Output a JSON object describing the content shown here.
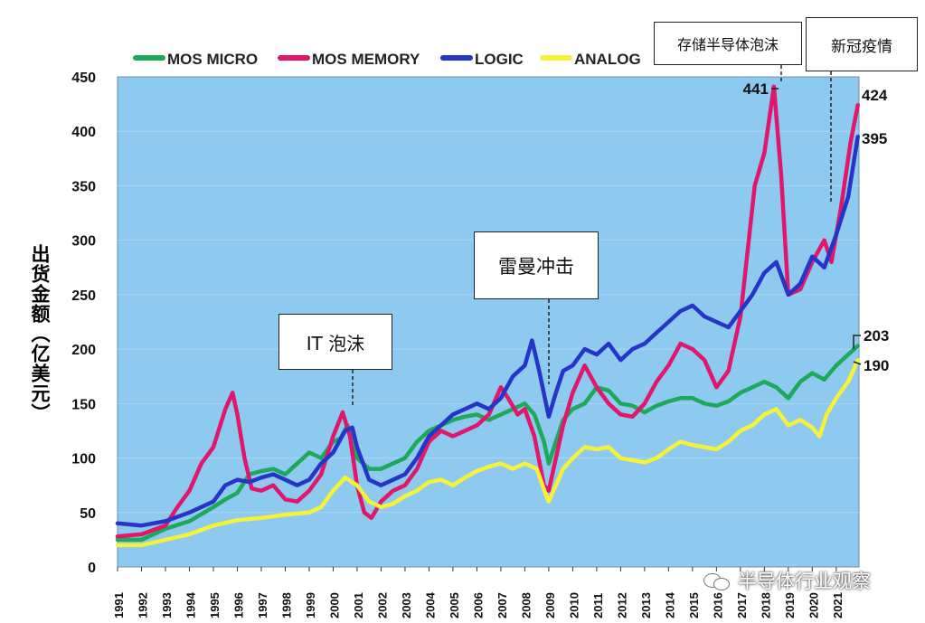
{
  "chart_data": {
    "type": "line",
    "title": "",
    "xlabel": "",
    "ylabel": "出货金额（亿美元）",
    "ylim": [
      0,
      450
    ],
    "yticks": [
      0,
      50,
      100,
      150,
      200,
      250,
      300,
      350,
      400,
      450
    ],
    "x_categories": [
      "1991",
      "1992",
      "1993",
      "1994",
      "1995",
      "1996",
      "1997",
      "1998",
      "1999",
      "2000",
      "2001",
      "2002",
      "2003",
      "2004",
      "2005",
      "2006",
      "2007",
      "2008",
      "2009",
      "2010",
      "2011",
      "2012",
      "2013",
      "2014",
      "2015",
      "2016",
      "2017",
      "2018",
      "2019",
      "2020",
      "2021"
    ],
    "grid": true,
    "legend_position": "top",
    "series": [
      {
        "name": "MOS MICRO",
        "color": "#1ea85a",
        "points": [
          [
            1991.0,
            25
          ],
          [
            1992.0,
            25
          ],
          [
            1993.0,
            35
          ],
          [
            1994.0,
            42
          ],
          [
            1995.0,
            55
          ],
          [
            1995.5,
            62
          ],
          [
            1996.0,
            68
          ],
          [
            1996.5,
            85
          ],
          [
            1997.0,
            88
          ],
          [
            1997.5,
            90
          ],
          [
            1998.0,
            85
          ],
          [
            1998.5,
            95
          ],
          [
            1999.0,
            105
          ],
          [
            1999.5,
            100
          ],
          [
            2000.0,
            115
          ],
          [
            2000.3,
            118
          ],
          [
            2000.6,
            130
          ],
          [
            2001.0,
            100
          ],
          [
            2001.5,
            90
          ],
          [
            2002.0,
            90
          ],
          [
            2002.5,
            95
          ],
          [
            2003.0,
            100
          ],
          [
            2003.5,
            115
          ],
          [
            2004.0,
            125
          ],
          [
            2004.5,
            130
          ],
          [
            2005.0,
            135
          ],
          [
            2005.5,
            138
          ],
          [
            2006.0,
            140
          ],
          [
            2006.5,
            135
          ],
          [
            2007.0,
            140
          ],
          [
            2007.5,
            145
          ],
          [
            2008.0,
            150
          ],
          [
            2008.4,
            140
          ],
          [
            2008.8,
            115
          ],
          [
            2009.0,
            95
          ],
          [
            2009.3,
            115
          ],
          [
            2009.6,
            135
          ],
          [
            2010.0,
            145
          ],
          [
            2010.5,
            150
          ],
          [
            2011.0,
            165
          ],
          [
            2011.5,
            162
          ],
          [
            2012.0,
            150
          ],
          [
            2012.5,
            148
          ],
          [
            2013.0,
            142
          ],
          [
            2013.5,
            148
          ],
          [
            2014.0,
            152
          ],
          [
            2014.5,
            155
          ],
          [
            2015.0,
            155
          ],
          [
            2015.5,
            150
          ],
          [
            2016.0,
            148
          ],
          [
            2016.5,
            152
          ],
          [
            2017.0,
            160
          ],
          [
            2017.5,
            165
          ],
          [
            2018.0,
            170
          ],
          [
            2018.5,
            165
          ],
          [
            2019.0,
            155
          ],
          [
            2019.5,
            170
          ],
          [
            2020.0,
            178
          ],
          [
            2020.5,
            172
          ],
          [
            2021.0,
            185
          ],
          [
            2021.5,
            195
          ],
          [
            2021.9,
            203
          ]
        ]
      },
      {
        "name": "MOS MEMORY",
        "color": "#e0176a",
        "points": [
          [
            1991.0,
            28
          ],
          [
            1992.0,
            30
          ],
          [
            1993.0,
            38
          ],
          [
            1993.5,
            55
          ],
          [
            1994.0,
            70
          ],
          [
            1994.5,
            95
          ],
          [
            1995.0,
            110
          ],
          [
            1995.5,
            145
          ],
          [
            1995.8,
            160
          ],
          [
            1996.0,
            140
          ],
          [
            1996.3,
            100
          ],
          [
            1996.6,
            72
          ],
          [
            1997.0,
            70
          ],
          [
            1997.5,
            75
          ],
          [
            1998.0,
            62
          ],
          [
            1998.5,
            60
          ],
          [
            1999.0,
            70
          ],
          [
            1999.5,
            85
          ],
          [
            2000.0,
            120
          ],
          [
            2000.4,
            142
          ],
          [
            2000.7,
            120
          ],
          [
            2001.0,
            75
          ],
          [
            2001.3,
            50
          ],
          [
            2001.6,
            45
          ],
          [
            2002.0,
            60
          ],
          [
            2002.5,
            70
          ],
          [
            2003.0,
            75
          ],
          [
            2003.5,
            90
          ],
          [
            2004.0,
            115
          ],
          [
            2004.5,
            125
          ],
          [
            2005.0,
            120
          ],
          [
            2005.5,
            125
          ],
          [
            2006.0,
            130
          ],
          [
            2006.5,
            140
          ],
          [
            2007.0,
            165
          ],
          [
            2007.3,
            155
          ],
          [
            2007.7,
            140
          ],
          [
            2008.0,
            145
          ],
          [
            2008.4,
            120
          ],
          [
            2008.8,
            75
          ],
          [
            2009.0,
            70
          ],
          [
            2009.3,
            100
          ],
          [
            2009.6,
            130
          ],
          [
            2010.0,
            160
          ],
          [
            2010.5,
            185
          ],
          [
            2011.0,
            165
          ],
          [
            2011.5,
            150
          ],
          [
            2012.0,
            140
          ],
          [
            2012.5,
            138
          ],
          [
            2013.0,
            150
          ],
          [
            2013.5,
            170
          ],
          [
            2014.0,
            185
          ],
          [
            2014.5,
            205
          ],
          [
            2015.0,
            200
          ],
          [
            2015.5,
            190
          ],
          [
            2016.0,
            165
          ],
          [
            2016.5,
            180
          ],
          [
            2017.0,
            230
          ],
          [
            2017.3,
            290
          ],
          [
            2017.6,
            350
          ],
          [
            2018.0,
            380
          ],
          [
            2018.4,
            441
          ],
          [
            2018.7,
            360
          ],
          [
            2019.0,
            250
          ],
          [
            2019.5,
            255
          ],
          [
            2020.0,
            280
          ],
          [
            2020.5,
            300
          ],
          [
            2020.8,
            280
          ],
          [
            2021.2,
            330
          ],
          [
            2021.6,
            390
          ],
          [
            2021.9,
            424
          ]
        ]
      },
      {
        "name": "LOGIC",
        "color": "#2535c8",
        "points": [
          [
            1991.0,
            40
          ],
          [
            1992.0,
            38
          ],
          [
            1993.0,
            42
          ],
          [
            1994.0,
            50
          ],
          [
            1995.0,
            60
          ],
          [
            1995.5,
            75
          ],
          [
            1996.0,
            80
          ],
          [
            1996.5,
            78
          ],
          [
            1997.0,
            82
          ],
          [
            1997.5,
            85
          ],
          [
            1998.0,
            80
          ],
          [
            1998.5,
            75
          ],
          [
            1999.0,
            80
          ],
          [
            1999.5,
            95
          ],
          [
            2000.0,
            105
          ],
          [
            2000.5,
            125
          ],
          [
            2000.8,
            128
          ],
          [
            2001.0,
            110
          ],
          [
            2001.5,
            80
          ],
          [
            2002.0,
            75
          ],
          [
            2002.5,
            80
          ],
          [
            2003.0,
            85
          ],
          [
            2003.5,
            100
          ],
          [
            2004.0,
            120
          ],
          [
            2004.5,
            130
          ],
          [
            2005.0,
            140
          ],
          [
            2005.5,
            145
          ],
          [
            2006.0,
            150
          ],
          [
            2006.5,
            145
          ],
          [
            2007.0,
            155
          ],
          [
            2007.5,
            175
          ],
          [
            2008.0,
            185
          ],
          [
            2008.3,
            208
          ],
          [
            2008.6,
            180
          ],
          [
            2009.0,
            138
          ],
          [
            2009.3,
            160
          ],
          [
            2009.6,
            180
          ],
          [
            2010.0,
            185
          ],
          [
            2010.5,
            200
          ],
          [
            2011.0,
            195
          ],
          [
            2011.5,
            205
          ],
          [
            2012.0,
            190
          ],
          [
            2012.5,
            200
          ],
          [
            2013.0,
            205
          ],
          [
            2013.5,
            215
          ],
          [
            2014.0,
            225
          ],
          [
            2014.5,
            235
          ],
          [
            2015.0,
            240
          ],
          [
            2015.5,
            230
          ],
          [
            2016.0,
            225
          ],
          [
            2016.5,
            220
          ],
          [
            2017.0,
            235
          ],
          [
            2017.5,
            250
          ],
          [
            2018.0,
            270
          ],
          [
            2018.5,
            280
          ],
          [
            2019.0,
            250
          ],
          [
            2019.5,
            260
          ],
          [
            2020.0,
            285
          ],
          [
            2020.5,
            275
          ],
          [
            2021.0,
            305
          ],
          [
            2021.5,
            340
          ],
          [
            2021.9,
            395
          ]
        ]
      },
      {
        "name": "ANALOG",
        "color": "#f4f23a",
        "points": [
          [
            1991.0,
            20
          ],
          [
            1992.0,
            20
          ],
          [
            1993.0,
            25
          ],
          [
            1994.0,
            30
          ],
          [
            1995.0,
            38
          ],
          [
            1996.0,
            43
          ],
          [
            1997.0,
            45
          ],
          [
            1998.0,
            48
          ],
          [
            1999.0,
            50
          ],
          [
            1999.5,
            55
          ],
          [
            2000.0,
            70
          ],
          [
            2000.5,
            82
          ],
          [
            2001.0,
            75
          ],
          [
            2001.5,
            60
          ],
          [
            2002.0,
            55
          ],
          [
            2002.5,
            58
          ],
          [
            2003.0,
            65
          ],
          [
            2003.5,
            70
          ],
          [
            2004.0,
            78
          ],
          [
            2004.5,
            80
          ],
          [
            2005.0,
            75
          ],
          [
            2005.5,
            82
          ],
          [
            2006.0,
            88
          ],
          [
            2006.5,
            92
          ],
          [
            2007.0,
            95
          ],
          [
            2007.5,
            90
          ],
          [
            2008.0,
            95
          ],
          [
            2008.5,
            90
          ],
          [
            2008.9,
            65
          ],
          [
            2009.0,
            60
          ],
          [
            2009.3,
            75
          ],
          [
            2009.6,
            90
          ],
          [
            2010.0,
            100
          ],
          [
            2010.5,
            110
          ],
          [
            2011.0,
            108
          ],
          [
            2011.5,
            110
          ],
          [
            2012.0,
            100
          ],
          [
            2012.5,
            98
          ],
          [
            2013.0,
            96
          ],
          [
            2013.5,
            100
          ],
          [
            2014.0,
            108
          ],
          [
            2014.5,
            115
          ],
          [
            2015.0,
            112
          ],
          [
            2015.5,
            110
          ],
          [
            2016.0,
            108
          ],
          [
            2016.5,
            115
          ],
          [
            2017.0,
            125
          ],
          [
            2017.5,
            130
          ],
          [
            2018.0,
            140
          ],
          [
            2018.5,
            145
          ],
          [
            2019.0,
            130
          ],
          [
            2019.5,
            135
          ],
          [
            2020.0,
            128
          ],
          [
            2020.3,
            120
          ],
          [
            2020.6,
            140
          ],
          [
            2021.0,
            155
          ],
          [
            2021.5,
            170
          ],
          [
            2021.9,
            190
          ]
        ]
      }
    ],
    "annotations": {
      "it_bubble": "IT 泡沫",
      "lehman": "雷曼冲击",
      "storage_bubble": "存储半导体泡沫",
      "covid": "新冠疫情",
      "peak_441": "441",
      "end_424": "424",
      "end_395": "395",
      "end_203": "203",
      "end_190": "190"
    }
  },
  "watermark": {
    "text": "半导体行业观察"
  }
}
